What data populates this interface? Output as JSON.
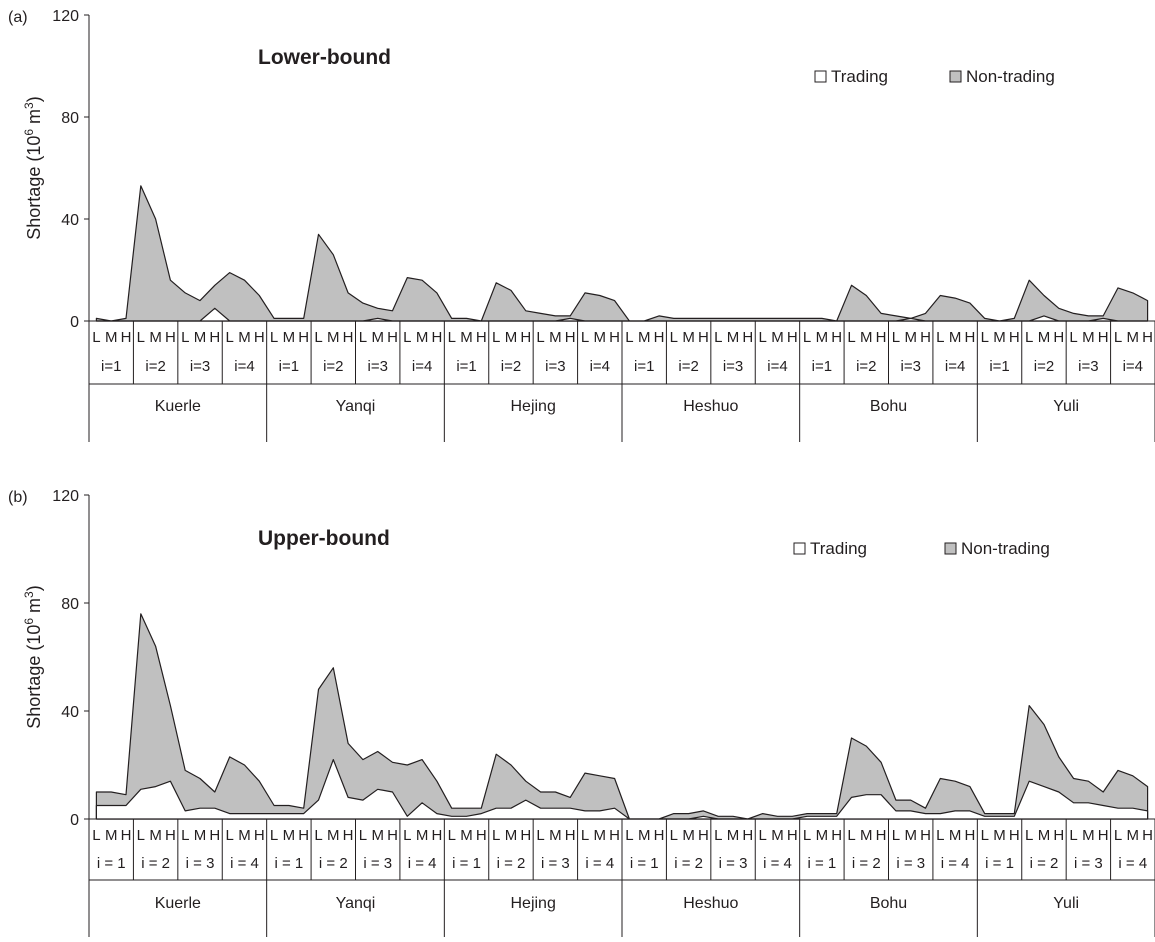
{
  "chart_data": [
    {
      "type": "area",
      "panel_label": "(a)",
      "title": "Lower-bound",
      "ylabel": "Shortage (10",
      "ylabel_sup": "6",
      "ylabel_unit": " m",
      "ylabel_sup2": "3",
      "ylabel_end": ")",
      "ylim": [
        0,
        120
      ],
      "yticks": [
        "0",
        "40",
        "80",
        "120"
      ],
      "level_labels": [
        "L",
        "M",
        "H"
      ],
      "scenario_labels": [
        "i=1",
        "i=2",
        "i=3",
        "i=4"
      ],
      "regions": [
        "Kuerle",
        "Yanqi",
        "Hejing",
        "Heshuo",
        "Bohu",
        "Yuli"
      ],
      "legend": [
        "Trading",
        "Non-trading"
      ],
      "colors": {
        "trading": "#ffffff",
        "non_trading": "#c0c0c0",
        "line": "#231f20"
      },
      "series": [
        {
          "name": "Trading",
          "values": [
            0,
            0,
            0,
            0,
            0,
            0,
            0,
            0,
            5,
            0,
            0,
            0,
            0,
            0,
            0,
            0,
            0,
            0,
            0,
            1,
            0,
            0,
            0,
            0,
            0,
            0,
            0,
            0,
            0,
            0,
            0,
            0,
            1,
            0,
            0,
            0,
            0,
            0,
            0,
            0,
            0,
            0,
            0,
            0,
            0,
            0,
            0,
            0,
            0,
            0,
            0,
            0,
            0,
            0,
            0,
            1,
            0,
            0,
            0,
            0,
            0,
            0,
            0,
            0,
            2,
            0,
            0,
            0,
            1,
            0,
            0,
            0
          ]
        },
        {
          "name": "Non-trading",
          "values": [
            1,
            0,
            1,
            53,
            40,
            16,
            11,
            8,
            14,
            19,
            16,
            10,
            1,
            1,
            1,
            34,
            26,
            11,
            7,
            5,
            4,
            17,
            16,
            11,
            1,
            1,
            0,
            15,
            12,
            4,
            3,
            2,
            2,
            11,
            10,
            8,
            0,
            0,
            2,
            1,
            1,
            1,
            1,
            1,
            1,
            1,
            1,
            1,
            1,
            1,
            0,
            14,
            10,
            3,
            2,
            1,
            3,
            10,
            9,
            7,
            1,
            0,
            1,
            16,
            10,
            5,
            3,
            2,
            2,
            13,
            11,
            8
          ]
        }
      ]
    },
    {
      "type": "area",
      "panel_label": "(b)",
      "title": "Upper-bound",
      "ylabel": "Shortage (10",
      "ylabel_sup": "6",
      "ylabel_unit": " m",
      "ylabel_sup2": "3",
      "ylabel_end": ")",
      "ylim": [
        0,
        120
      ],
      "yticks": [
        "0",
        "40",
        "80",
        "120"
      ],
      "level_labels": [
        "L",
        "M",
        "H"
      ],
      "scenario_labels": [
        "i = 1",
        "i = 2",
        "i = 3",
        "i = 4"
      ],
      "regions": [
        "Kuerle",
        "Yanqi",
        "Hejing",
        "Heshuo",
        "Bohu",
        "Yuli"
      ],
      "legend": [
        "Trading",
        "Non-trading"
      ],
      "colors": {
        "trading": "#ffffff",
        "non_trading": "#c0c0c0",
        "line": "#231f20"
      },
      "series": [
        {
          "name": "Trading",
          "values": [
            5,
            5,
            5,
            11,
            12,
            14,
            3,
            4,
            4,
            2,
            2,
            2,
            2,
            2,
            2,
            7,
            22,
            8,
            7,
            11,
            10,
            1,
            6,
            2,
            1,
            1,
            2,
            4,
            4,
            7,
            4,
            4,
            4,
            3,
            3,
            4,
            0,
            0,
            0,
            0,
            0,
            1,
            0,
            0,
            0,
            0,
            0,
            0,
            1,
            1,
            1,
            8,
            9,
            9,
            3,
            3,
            2,
            2,
            3,
            3,
            1,
            1,
            1,
            14,
            12,
            10,
            6,
            6,
            5,
            4,
            4,
            3
          ]
        },
        {
          "name": "Non-trading",
          "values": [
            10,
            10,
            9,
            76,
            64,
            42,
            18,
            15,
            10,
            23,
            20,
            14,
            5,
            5,
            4,
            48,
            56,
            28,
            22,
            25,
            21,
            20,
            22,
            14,
            4,
            4,
            4,
            24,
            20,
            14,
            10,
            10,
            8,
            17,
            16,
            15,
            0,
            0,
            0,
            2,
            2,
            3,
            1,
            1,
            0,
            2,
            1,
            1,
            2,
            2,
            2,
            30,
            27,
            21,
            7,
            7,
            4,
            15,
            14,
            12,
            2,
            2,
            2,
            42,
            35,
            23,
            15,
            14,
            10,
            18,
            16,
            12
          ]
        }
      ]
    }
  ]
}
